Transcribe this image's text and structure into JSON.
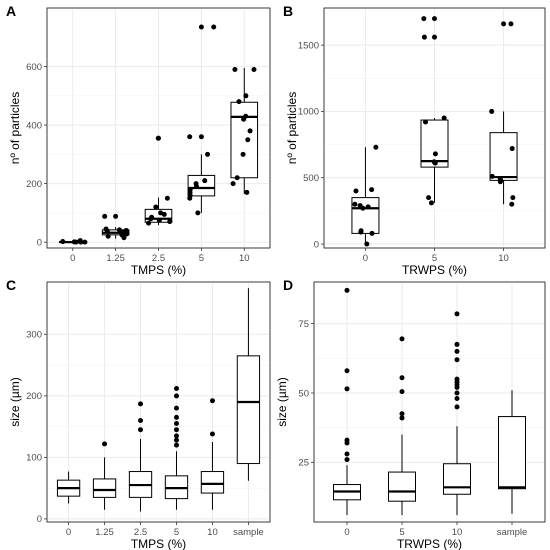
{
  "chart_data": [
    {
      "id": "A",
      "panel_label": "A",
      "type": "boxplot",
      "xlabel": "TMPS (%)",
      "ylabel": "nº of particles",
      "categories": [
        "0",
        "1.25",
        "2.5",
        "5",
        "10"
      ],
      "ylim": [
        -20,
        800
      ],
      "yticks": [
        0,
        200,
        400,
        600
      ],
      "grid": true,
      "boxes": [
        {
          "q1": 0,
          "median": 0,
          "q3": 2,
          "lo": 0,
          "hi": 3,
          "outliers": []
        },
        {
          "q1": 25,
          "median": 32,
          "q3": 42,
          "lo": 12,
          "hi": 52,
          "outliers": [
            88
          ]
        },
        {
          "q1": 68,
          "median": 80,
          "q3": 112,
          "lo": 58,
          "hi": 152,
          "outliers": [
            355
          ]
        },
        {
          "q1": 158,
          "median": 185,
          "q3": 228,
          "lo": 100,
          "hi": 300,
          "outliers": [
            360,
            735
          ]
        },
        {
          "q1": 220,
          "median": 428,
          "q3": 478,
          "lo": 165,
          "hi": 595,
          "outliers": []
        }
      ],
      "points": [
        [
          0,
          0
        ],
        [
          0,
          2
        ],
        [
          0,
          5
        ],
        [
          0,
          0
        ],
        [
          0,
          3
        ],
        [
          0,
          1
        ],
        [
          0,
          0
        ],
        [
          1,
          40
        ],
        [
          1,
          35
        ],
        [
          1,
          30
        ],
        [
          1,
          25
        ],
        [
          1,
          42
        ],
        [
          1,
          20
        ],
        [
          1,
          28
        ],
        [
          1,
          45
        ],
        [
          1,
          15
        ],
        [
          1,
          38
        ],
        [
          1,
          88
        ],
        [
          2,
          70
        ],
        [
          2,
          80
        ],
        [
          2,
          95
        ],
        [
          2,
          65
        ],
        [
          2,
          120
        ],
        [
          2,
          150
        ],
        [
          2,
          85
        ],
        [
          2,
          75
        ],
        [
          2,
          100
        ],
        [
          2,
          355
        ],
        [
          3,
          160
        ],
        [
          3,
          180
        ],
        [
          3,
          200
        ],
        [
          3,
          210
        ],
        [
          3,
          150
        ],
        [
          3,
          100
        ],
        [
          3,
          300
        ],
        [
          3,
          360
        ],
        [
          3,
          735
        ],
        [
          3,
          170
        ],
        [
          3,
          190
        ],
        [
          4,
          590
        ],
        [
          4,
          590
        ],
        [
          4,
          500
        ],
        [
          4,
          480
        ],
        [
          4,
          430
        ],
        [
          4,
          420
        ],
        [
          4,
          380
        ],
        [
          4,
          350
        ],
        [
          4,
          300
        ],
        [
          4,
          220
        ],
        [
          4,
          170
        ],
        [
          4,
          200
        ]
      ]
    },
    {
      "id": "B",
      "panel_label": "B",
      "type": "boxplot",
      "xlabel": "TRWPS (%)",
      "ylabel": "nº of particles",
      "categories": [
        "0",
        "5",
        "10"
      ],
      "ylim": [
        -30,
        1780
      ],
      "yticks": [
        0,
        500,
        1000,
        1500
      ],
      "grid": true,
      "boxes": [
        {
          "q1": 80,
          "median": 270,
          "q3": 350,
          "lo": 0,
          "hi": 730,
          "outliers": []
        },
        {
          "q1": 580,
          "median": 625,
          "q3": 935,
          "lo": 310,
          "hi": 950,
          "outliers": [
            1560,
            1700
          ]
        },
        {
          "q1": 480,
          "median": 505,
          "q3": 840,
          "lo": 300,
          "hi": 1000,
          "outliers": [
            1660
          ]
        }
      ],
      "points": [
        [
          0,
          730
        ],
        [
          0,
          400
        ],
        [
          0,
          410
        ],
        [
          0,
          300
        ],
        [
          0,
          280
        ],
        [
          0,
          270
        ],
        [
          0,
          100
        ],
        [
          0,
          90
        ],
        [
          0,
          80
        ],
        [
          0,
          0
        ],
        [
          0,
          290
        ],
        [
          1,
          1700
        ],
        [
          1,
          1560
        ],
        [
          1,
          950
        ],
        [
          1,
          920
        ],
        [
          1,
          680
        ],
        [
          1,
          620
        ],
        [
          1,
          610
        ],
        [
          1,
          350
        ],
        [
          1,
          310
        ],
        [
          2,
          1660
        ],
        [
          2,
          1000
        ],
        [
          2,
          720
        ],
        [
          2,
          510
        ],
        [
          2,
          490
        ],
        [
          2,
          480
        ],
        [
          2,
          470
        ],
        [
          2,
          350
        ],
        [
          2,
          300
        ]
      ]
    },
    {
      "id": "C",
      "panel_label": "C",
      "type": "boxplot",
      "xlabel": "TMPS (%)",
      "ylabel": "size (µm)",
      "categories": [
        "0",
        "1.25",
        "2.5",
        "5",
        "10",
        "sample"
      ],
      "ylim": [
        -5,
        385
      ],
      "yticks": [
        0,
        100,
        200,
        300
      ],
      "grid": true,
      "boxes": [
        {
          "q1": 37,
          "median": 50,
          "q3": 63,
          "lo": 25,
          "hi": 77,
          "outliers": []
        },
        {
          "q1": 35,
          "median": 47,
          "q3": 65,
          "lo": 15,
          "hi": 100,
          "outliers": [
            122
          ]
        },
        {
          "q1": 35,
          "median": 55,
          "q3": 77,
          "lo": 12,
          "hi": 130,
          "outliers": [
            145,
            160,
            187
          ]
        },
        {
          "q1": 33,
          "median": 50,
          "q3": 70,
          "lo": 15,
          "hi": 110,
          "outliers": [
            120,
            128,
            135,
            145,
            155,
            165,
            180,
            200,
            212
          ]
        },
        {
          "q1": 42,
          "median": 57,
          "q3": 77,
          "lo": 15,
          "hi": 125,
          "outliers": [
            138,
            192
          ]
        },
        {
          "q1": 90,
          "median": 190,
          "q3": 265,
          "lo": 62,
          "hi": 375,
          "outliers": []
        }
      ],
      "points": []
    },
    {
      "id": "D",
      "panel_label": "D",
      "type": "boxplot",
      "xlabel": "TRWPS (%)",
      "ylabel": "size (µm)",
      "categories": [
        "0",
        "5",
        "10",
        "sample"
      ],
      "ylim": [
        3.5,
        90
      ],
      "yticks": [
        25,
        50,
        75
      ],
      "grid": true,
      "boxes": [
        {
          "q1": 11.5,
          "median": 14.5,
          "q3": 17,
          "lo": 6,
          "hi": 24,
          "outliers": [
            26,
            28,
            32,
            33,
            51.5,
            58,
            87
          ]
        },
        {
          "q1": 11,
          "median": 14.5,
          "q3": 21.5,
          "lo": 6,
          "hi": 35,
          "outliers": [
            41,
            42.5,
            50.5,
            55.5,
            69.5
          ]
        },
        {
          "q1": 13.5,
          "median": 16,
          "q3": 24.5,
          "lo": 6,
          "hi": 38,
          "outliers": [
            45,
            48,
            50,
            52,
            53,
            54,
            55,
            62,
            65,
            67.5,
            78.5
          ]
        },
        {
          "q1": 15.5,
          "median": 16,
          "q3": 41.5,
          "lo": 6.5,
          "hi": 51,
          "outliers": []
        }
      ],
      "points": []
    }
  ]
}
